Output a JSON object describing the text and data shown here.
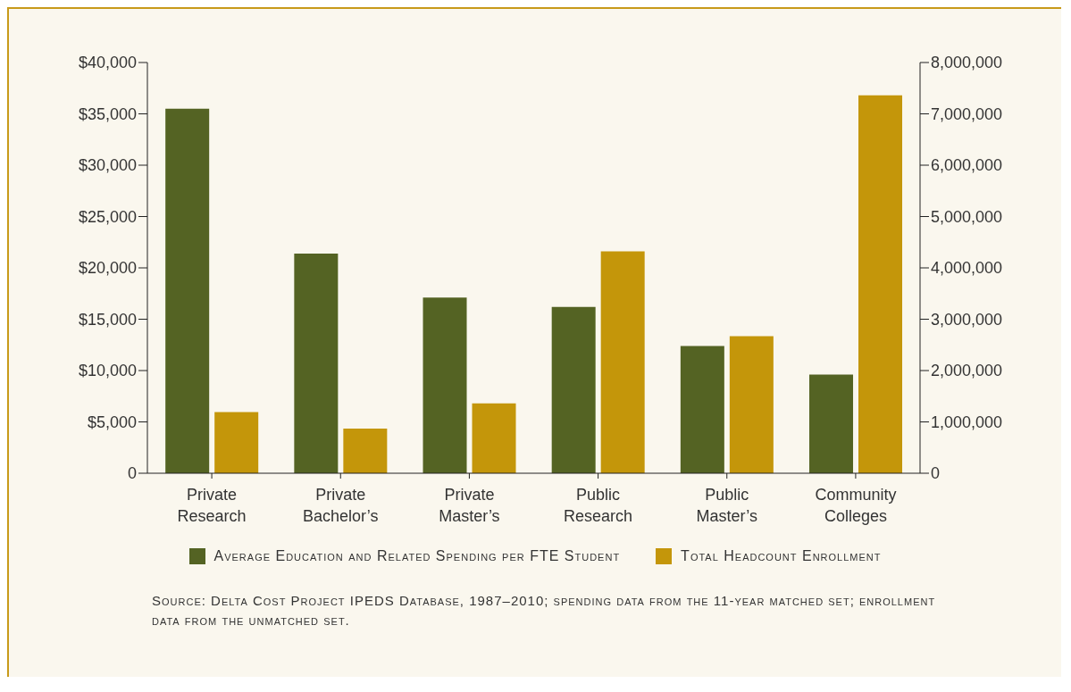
{
  "chart_data": {
    "type": "bar",
    "categories": [
      "Private Research",
      "Private Bachelor’s",
      "Private Master’s",
      "Public Research",
      "Public Master’s",
      "Community Colleges"
    ],
    "series": [
      {
        "name": "Average Education and Related Spending per FTE Student",
        "color": "#546323",
        "values": [
          35500,
          21400,
          17100,
          16200,
          12400,
          9600
        ]
      },
      {
        "name": "Total Headcount Enrollment",
        "color": "#c4960a",
        "axis": "y2",
        "values": [
          1190000,
          870000,
          1360000,
          4320000,
          2670000,
          7360000
        ]
      }
    ],
    "ylim": [
      0,
      40000
    ],
    "yticks": [
      0,
      {
        "value": 5000,
        "label": "$5,000"
      },
      {
        "value": 10000,
        "label": "$10,000"
      },
      {
        "value": 15000,
        "label": "$15,000"
      },
      {
        "value": 20000,
        "label": "$20,000"
      },
      {
        "value": 25000,
        "label": "$25,000"
      },
      {
        "value": 30000,
        "label": "$30,000"
      },
      {
        "value": 35000,
        "label": "$35,000"
      },
      {
        "value": 40000,
        "label": "$40,000"
      }
    ],
    "y2lim": [
      0,
      8000000
    ],
    "y2ticks": [
      0,
      {
        "value": 1000000,
        "label": "1,000,000"
      },
      {
        "value": 2000000,
        "label": "2,000,000"
      },
      {
        "value": 3000000,
        "label": "3,000,000"
      },
      {
        "value": 4000000,
        "label": "4,000,000"
      },
      {
        "value": 5000000,
        "label": "5,000,000"
      },
      {
        "value": 6000000,
        "label": "6,000,000"
      },
      {
        "value": 7000000,
        "label": "7,000,000"
      },
      {
        "value": 8000000,
        "label": "8,000,000"
      }
    ],
    "grid": false,
    "legend": "bottom",
    "annotations": [
      "Source: Delta Cost Project IPEDS Database, 1987–2010; spending data from the 11-year matched set; enrollment data from the unmatched set."
    ]
  }
}
